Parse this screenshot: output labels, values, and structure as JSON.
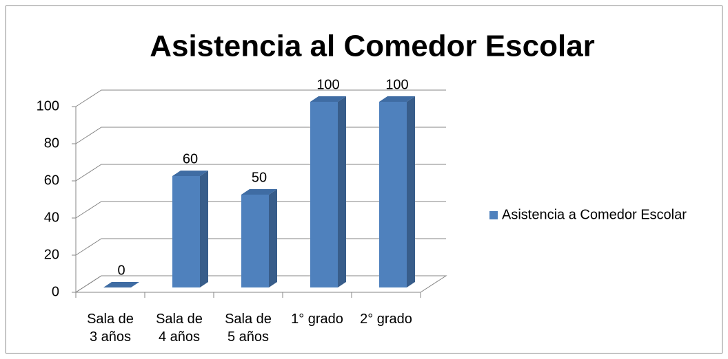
{
  "chart_data": {
    "type": "bar3d",
    "title": "Asistencia al Comedor Escolar",
    "categories": [
      "Sala de 3 años",
      "Sala de 4 años",
      "Sala de 5 años",
      "1° grado",
      "2° grado"
    ],
    "series": [
      {
        "name": "Asistencia a Comedor Escolar",
        "color": "#4f81bd",
        "values": [
          0,
          60,
          50,
          100,
          100
        ]
      }
    ],
    "ylim": [
      0,
      100
    ],
    "yticks": [
      0,
      20,
      40,
      60,
      80,
      100
    ],
    "grid": true,
    "legend": "right",
    "data_labels": true
  }
}
